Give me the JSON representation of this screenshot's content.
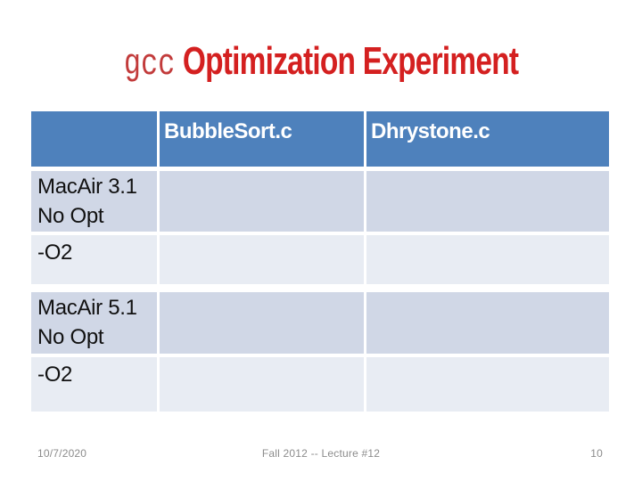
{
  "title": {
    "prefix": "gcc",
    "rest": " Optimization Experiment"
  },
  "table": {
    "headers": [
      "",
      "BubbleSort.c",
      "Dhrystone.c"
    ],
    "rows": [
      {
        "label_lines": [
          "MacAir 3.1",
          "No Opt"
        ],
        "bubblesort": "",
        "dhrystone": ""
      },
      {
        "label_lines": [
          "-O2"
        ],
        "bubblesort": "",
        "dhrystone": ""
      },
      {
        "label_lines": [
          "MacAir 5.1",
          "No Opt"
        ],
        "bubblesort": "",
        "dhrystone": ""
      },
      {
        "label_lines": [
          "-O2"
        ],
        "bubblesort": "",
        "dhrystone": ""
      }
    ]
  },
  "footer": {
    "date": "10/7/2020",
    "course": "Fall 2012 -- Lecture #12",
    "slide_number": "10"
  },
  "colors": {
    "title_red": "#d42020",
    "gcc_red": "#c23b3b",
    "header_blue": "#4e81bc",
    "band_dark": "#d0d7e6",
    "band_light": "#e8ecf3",
    "footer_gray": "#8c8c8c"
  }
}
